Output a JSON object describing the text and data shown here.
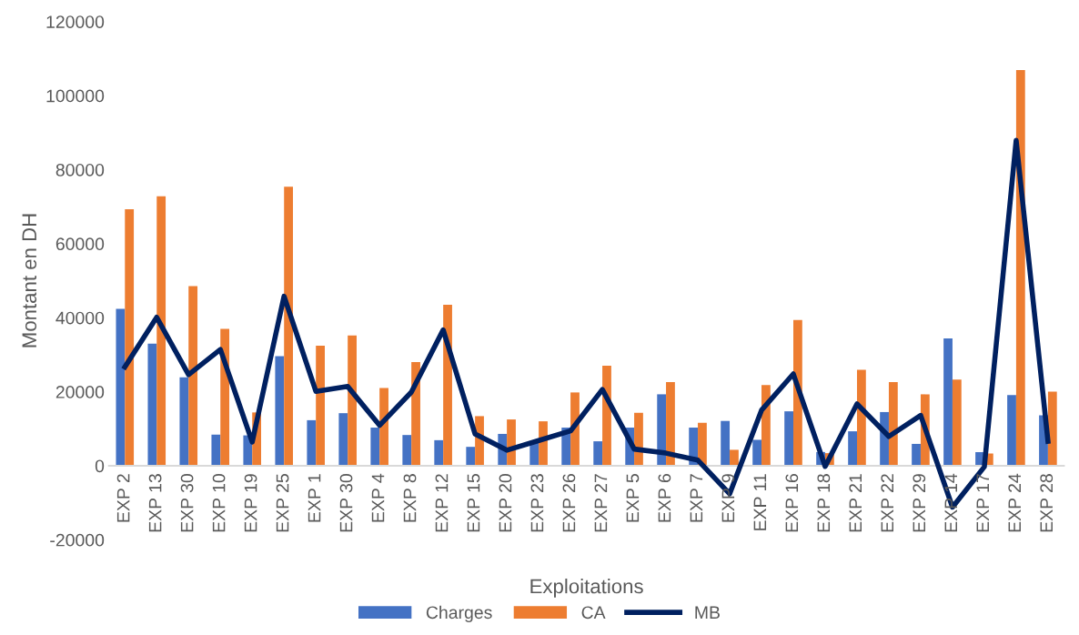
{
  "chart_data": {
    "type": "bar",
    "xlabel": "Exploitations",
    "ylabel": "Montant en DH",
    "categories": [
      "EXP 2",
      "EXP 13",
      "EXP 30",
      "EXP 10",
      "EXP 19",
      "EXP 25",
      "EXP 1",
      "EXP 30",
      "EXP 4",
      "EXP 8",
      "EXP 12",
      "EXP 15",
      "EXP 20",
      "EXP 23",
      "EXP 26",
      "EXP 27",
      "EXP 5",
      "EXP 6",
      "EXP 7",
      "EXP 9",
      "EXP 11",
      "EXP 16",
      "EXP 18",
      "EXP 21",
      "EXP 22",
      "EXP 29",
      "EXP 14",
      "EXP 17",
      "EXP 24",
      "EXP 28"
    ],
    "series": [
      {
        "name": "Charges",
        "color": "#4472c4",
        "values": [
          42400,
          33000,
          23900,
          8400,
          8200,
          29600,
          12300,
          14200,
          10300,
          8300,
          6900,
          5100,
          8600,
          6500,
          10300,
          6600,
          10300,
          19300,
          10300,
          12100,
          7000,
          14700,
          3700,
          9300,
          14500,
          5900,
          34400,
          3700,
          19100,
          13600
        ]
      },
      {
        "name": "CA",
        "color": "#ed7d31",
        "values": [
          69300,
          72800,
          48500,
          37000,
          14400,
          75400,
          32400,
          35200,
          21000,
          28000,
          43500,
          13400,
          12500,
          12000,
          19800,
          27000,
          14300,
          22600,
          11600,
          4300,
          21800,
          39400,
          3400,
          25900,
          22600,
          19300,
          23300,
          3300,
          106900,
          20000
        ]
      },
      {
        "name": "MB",
        "type": "line",
        "color": "#002060",
        "values": [
          26700,
          40100,
          24600,
          31400,
          6400,
          45800,
          20100,
          21400,
          10900,
          19900,
          36700,
          8600,
          4200,
          6800,
          9400,
          20600,
          4500,
          3400,
          1500,
          -7600,
          15000,
          24800,
          -200,
          16700,
          7900,
          13600,
          -11200,
          -300,
          87900,
          6600
        ]
      }
    ],
    "ylim": [
      -20000,
      120000
    ],
    "yticks": [
      -20000,
      0,
      20000,
      40000,
      60000,
      80000,
      100000,
      120000
    ],
    "grid": false,
    "legend": "bottom",
    "marker": "none",
    "line_style": "solid"
  }
}
